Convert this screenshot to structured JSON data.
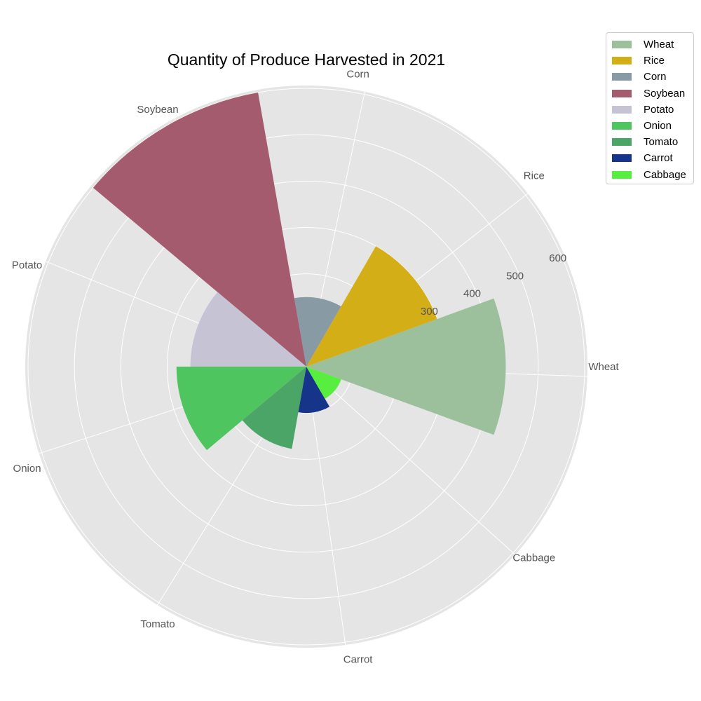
{
  "chart_data": {
    "type": "polar-bar",
    "title": "Quantity of Produce Harvested in 2021",
    "categories": [
      "Wheat",
      "Rice",
      "Corn",
      "Soybean",
      "Potato",
      "Onion",
      "Tomato",
      "Carrot",
      "Cabbage"
    ],
    "values": [
      430,
      300,
      150,
      600,
      250,
      280,
      180,
      100,
      80
    ],
    "colors": [
      "#9bc09b",
      "#d4ae17",
      "#889aa4",
      "#a55b6e",
      "#c5c3d4",
      "#4fc560",
      "#4aa566",
      "#15348a",
      "#58ee3f"
    ],
    "radial_ticks": [
      300,
      400,
      500,
      600
    ],
    "radial_max": 600,
    "legend_placement": "top-right",
    "grid": true
  }
}
